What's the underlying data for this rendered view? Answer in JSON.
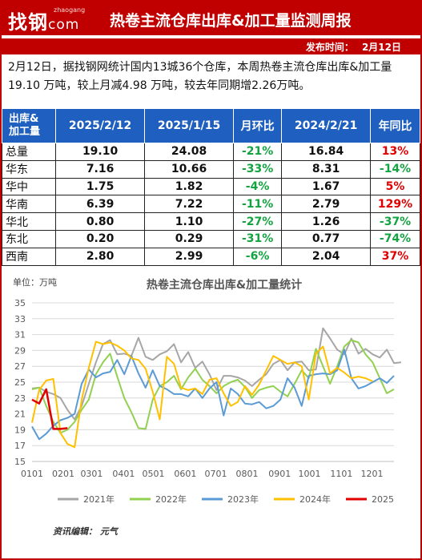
{
  "header": {
    "logo_text": "找钢",
    "logo_suffix": "com",
    "logo_sub": "zhaogang",
    "title": "热卷主流仓库出库&加工量监测周报"
  },
  "pub": {
    "label": "发布时间：",
    "date": "2月12日"
  },
  "summary": "2月12日，据找钢网统计国内13城36个仓库，本周热卷主流仓库出库&加工量19.10 万吨，较上月减4.98 万吨，较去年同期增2.26万吨。",
  "table": {
    "header_line1": "出库&",
    "header_line2": "加工量",
    "columns": [
      "2025/2/12",
      "2025/1/15",
      "月环比",
      "2024/2/21",
      "年同比"
    ],
    "rows": [
      {
        "name": "总量",
        "cur": "19.10",
        "prev": "24.08",
        "mom": "-21%",
        "ly": "16.84",
        "yoy": "13%"
      },
      {
        "name": "华东",
        "cur": "7.16",
        "prev": "10.66",
        "mom": "-33%",
        "ly": "8.31",
        "yoy": "-14%"
      },
      {
        "name": "华中",
        "cur": "1.75",
        "prev": "1.82",
        "mom": "-4%",
        "ly": "1.67",
        "yoy": "5%"
      },
      {
        "name": "华南",
        "cur": "6.39",
        "prev": "7.22",
        "mom": "-11%",
        "ly": "2.79",
        "yoy": "129%"
      },
      {
        "name": "华北",
        "cur": "0.80",
        "prev": "1.10",
        "mom": "-27%",
        "ly": "1.26",
        "yoy": "-37%"
      },
      {
        "name": "东北",
        "cur": "0.20",
        "prev": "0.29",
        "mom": "-31%",
        "ly": "0.77",
        "yoy": "-74%"
      },
      {
        "name": "西南",
        "cur": "2.80",
        "prev": "2.99",
        "mom": "-6%",
        "ly": "2.04",
        "yoy": "37%"
      }
    ]
  },
  "colors": {
    "brand_red": "#c00000",
    "header_blue": "#1f5fbf",
    "up_red": "#e00000",
    "down_green": "#13a340"
  },
  "chart_data": {
    "type": "line",
    "title": "热卷主流仓库出库&加工量统计",
    "unit_label": "单位：万吨",
    "ylim": [
      15,
      35
    ],
    "yticks": [
      15,
      17,
      19,
      21,
      23,
      25,
      27,
      29,
      31,
      33,
      35
    ],
    "xlim": [
      1,
      52
    ],
    "xticks": [
      {
        "label": "0101",
        "week": 1
      },
      {
        "label": "0201",
        "week": 5.4
      },
      {
        "label": "0301",
        "week": 9.4
      },
      {
        "label": "0401",
        "week": 13.9
      },
      {
        "label": "0501",
        "week": 18.1
      },
      {
        "label": "0601",
        "week": 22.6
      },
      {
        "label": "0701",
        "week": 26.9
      },
      {
        "label": "0801",
        "week": 31.3
      },
      {
        "label": "0901",
        "week": 35.9
      },
      {
        "label": "1001",
        "week": 40.1
      },
      {
        "label": "1101",
        "week": 44.6
      },
      {
        "label": "1201",
        "week": 48.9
      }
    ],
    "grid": true,
    "legend_position": "bottom",
    "credit": "资讯编辑：  元气",
    "series": [
      {
        "name": "2021年",
        "color": "#a6a6a6",
        "values": [
          24.2,
          24.3,
          23.8,
          23.5,
          23.0,
          21.5,
          20.3,
          22.0,
          24.8,
          27.5,
          29.8,
          30.3,
          28.5,
          28.6,
          28.3,
          30.6,
          28.2,
          27.8,
          28.5,
          28.9,
          29.8,
          27.5,
          28.8,
          26.8,
          27.6,
          26.0,
          24.0,
          25.8,
          25.8,
          25.6,
          25.2,
          24.5,
          25.3,
          26.0,
          27.3,
          27.8,
          26.5,
          27.5,
          27.6,
          26.5,
          26.6,
          31.8,
          30.5,
          29.1,
          28.5,
          30.5,
          28.6,
          29.2,
          28.5,
          28.1,
          29.1,
          27.4,
          27.5
        ]
      },
      {
        "name": "2022年",
        "color": "#92d050",
        "values": [
          24.1,
          24.3,
          22.0,
          20.0,
          18.6,
          19.0,
          20.0,
          21.5,
          22.8,
          26.0,
          27.5,
          28.6,
          25.7,
          23.0,
          21.2,
          19.2,
          19.1,
          22.8,
          24.5,
          25.0,
          25.8,
          24.1,
          25.6,
          26.7,
          25.3,
          24.5,
          23.6,
          24.5,
          25.0,
          25.3,
          24.4,
          23.0,
          24.0,
          24.3,
          24.5,
          23.8,
          23.2,
          24.8,
          26.5,
          25.5,
          29.2,
          27.0,
          24.8,
          27.0,
          29.5,
          30.3,
          30.0,
          28.5,
          27.5,
          25.5,
          23.6,
          24.1
        ]
      },
      {
        "name": "2023年",
        "color": "#5b9bd5",
        "values": [
          19.4,
          17.8,
          18.5,
          19.5,
          20.2,
          20.5,
          21.0,
          24.8,
          26.6,
          25.6,
          26.1,
          26.3,
          27.8,
          26.0,
          28.3,
          26.1,
          24.3,
          26.5,
          24.5,
          24.1,
          23.5,
          23.5,
          23.2,
          24.2,
          23.0,
          24.2,
          25.0,
          20.8,
          24.2,
          23.5,
          22.3,
          22.2,
          22.5,
          21.7,
          22.0,
          22.8,
          25.5,
          24.3,
          22.0,
          25.8,
          26.0,
          26.1,
          26.0,
          26.5,
          29.1,
          25.5,
          24.2,
          24.5,
          25.0,
          25.5,
          24.9,
          25.8
        ]
      },
      {
        "name": "2024年",
        "color": "#ffc000",
        "values": [
          19.9,
          24.0,
          25.2,
          25.4,
          18.6,
          17.2,
          16.8,
          22.8,
          26.8,
          30.1,
          29.8,
          30.0,
          29.6,
          29.0,
          28.0,
          27.8,
          26.7,
          23.8,
          20.3,
          28.2,
          27.3,
          24.3,
          24.0,
          24.2,
          23.5,
          25.3,
          25.5,
          23.6,
          22.0,
          22.5,
          24.5,
          23.4,
          24.7,
          26.5,
          28.3,
          27.8,
          27.3,
          27.5,
          27.0,
          22.8,
          28.6,
          29.5,
          26.1,
          26.8,
          26.2,
          25.5,
          25.7,
          25.5,
          25.1
        ]
      },
      {
        "name": "2025",
        "color": "#e00000",
        "values": [
          22.8,
          22.3,
          24.1,
          19.1,
          19.1,
          19.2
        ]
      }
    ]
  }
}
